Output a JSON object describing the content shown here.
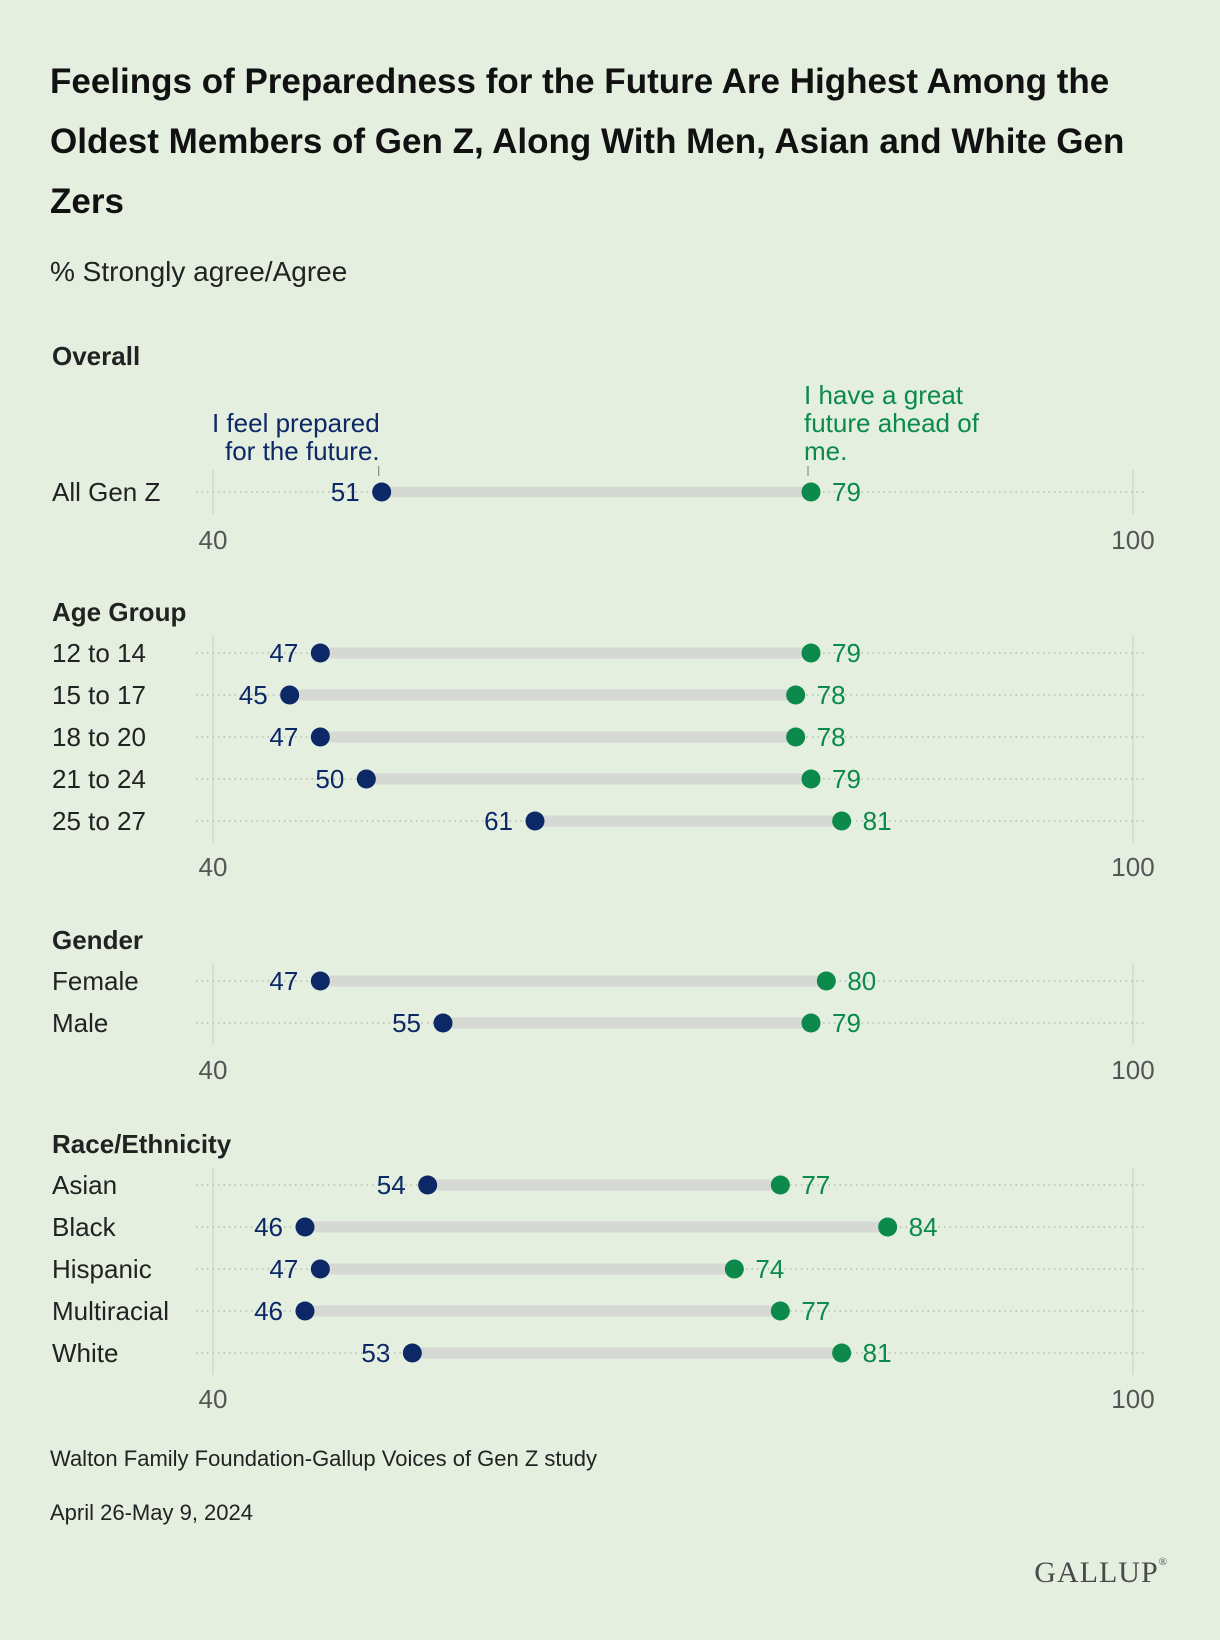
{
  "title": "Feelings of Preparedness for the Future Are Highest Among the Oldest Members of Gen Z, Along With Men, Asian and White Gen Zers",
  "subtitle": "% Strongly agree/Agree",
  "source": "Walton Family Foundation-Gallup Voices of Gen Z study",
  "date": "April 26-May 9, 2024",
  "logo": "GALLUP",
  "colors": {
    "prepared": "#0c2866",
    "future": "#0b8a4b",
    "bar": "#d6d8d3",
    "background": "#e4efe0"
  },
  "chart_data": {
    "type": "dumbbell",
    "xlim": [
      40,
      100
    ],
    "tick_labels": [
      "40",
      "100"
    ],
    "series": [
      {
        "name": "I feel prepared for the future.",
        "key": "prepared"
      },
      {
        "name": "I have a great future ahead of me.",
        "key": "future"
      }
    ],
    "panels": [
      {
        "heading": "Overall",
        "rows": [
          {
            "label": "All Gen Z",
            "prepared": 51,
            "future": 79
          }
        ]
      },
      {
        "heading": "Age Group",
        "rows": [
          {
            "label": "12 to 14",
            "prepared": 47,
            "future": 79
          },
          {
            "label": "15 to 17",
            "prepared": 45,
            "future": 78
          },
          {
            "label": "18 to 20",
            "prepared": 47,
            "future": 78
          },
          {
            "label": "21 to 24",
            "prepared": 50,
            "future": 79
          },
          {
            "label": "25 to 27",
            "prepared": 61,
            "future": 81
          }
        ]
      },
      {
        "heading": "Gender",
        "rows": [
          {
            "label": "Female",
            "prepared": 47,
            "future": 80
          },
          {
            "label": "Male",
            "prepared": 55,
            "future": 79
          }
        ]
      },
      {
        "heading": "Race/Ethnicity",
        "rows": [
          {
            "label": "Asian",
            "prepared": 54,
            "future": 77
          },
          {
            "label": "Black",
            "prepared": 46,
            "future": 84
          },
          {
            "label": "Hispanic",
            "prepared": 47,
            "future": 74
          },
          {
            "label": "Multiracial",
            "prepared": 46,
            "future": 77
          },
          {
            "label": "White",
            "prepared": 53,
            "future": 81
          }
        ]
      }
    ]
  }
}
